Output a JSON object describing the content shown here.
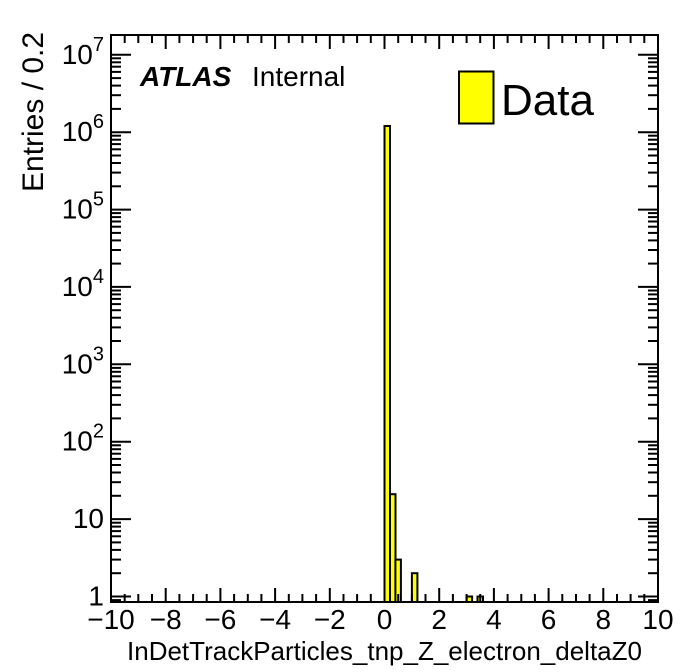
{
  "page": {
    "background": "#ffffff"
  },
  "plot": {
    "atlas_label": "ATLAS",
    "atlas_sublabel": "Internal",
    "frame_color": "#000000"
  },
  "chart_data": {
    "type": "bar",
    "title": "",
    "xlabel": "InDetTrackParticles_tnp_Z_electron_deltaZ0",
    "ylabel": "Entries / 0.2",
    "x_range": [
      -10,
      10
    ],
    "y_range": [
      0.85,
      18000000
    ],
    "y_scale": "log",
    "grid": false,
    "legend_position": "top-right",
    "legend": [
      {
        "label": "Data",
        "color": "#ffff00",
        "border": "#000000"
      }
    ],
    "bin_width": 0.2,
    "bins": [
      {
        "x_low": 0.0,
        "x_high": 0.2,
        "count": 1200000
      },
      {
        "x_low": 0.2,
        "x_high": 0.4,
        "count": 21
      },
      {
        "x_low": 0.4,
        "x_high": 0.6,
        "count": 3
      },
      {
        "x_low": 1.0,
        "x_high": 1.2,
        "count": 2
      },
      {
        "x_low": 3.0,
        "x_high": 3.2,
        "count": 1
      },
      {
        "x_low": 3.4,
        "x_high": 3.6,
        "count": 1
      }
    ],
    "x_major_ticks": [
      -10,
      -8,
      -6,
      -4,
      -2,
      0,
      2,
      4,
      6,
      8,
      10
    ],
    "x_tick_labels": [
      "−10",
      "−8",
      "−6",
      "−4",
      "−2",
      "0",
      "2",
      "4",
      "6",
      "8",
      "10"
    ],
    "x_minor_tick_step": 0.5,
    "y_decade_exponents": [
      0,
      1,
      2,
      3,
      4,
      5,
      6,
      7
    ]
  }
}
